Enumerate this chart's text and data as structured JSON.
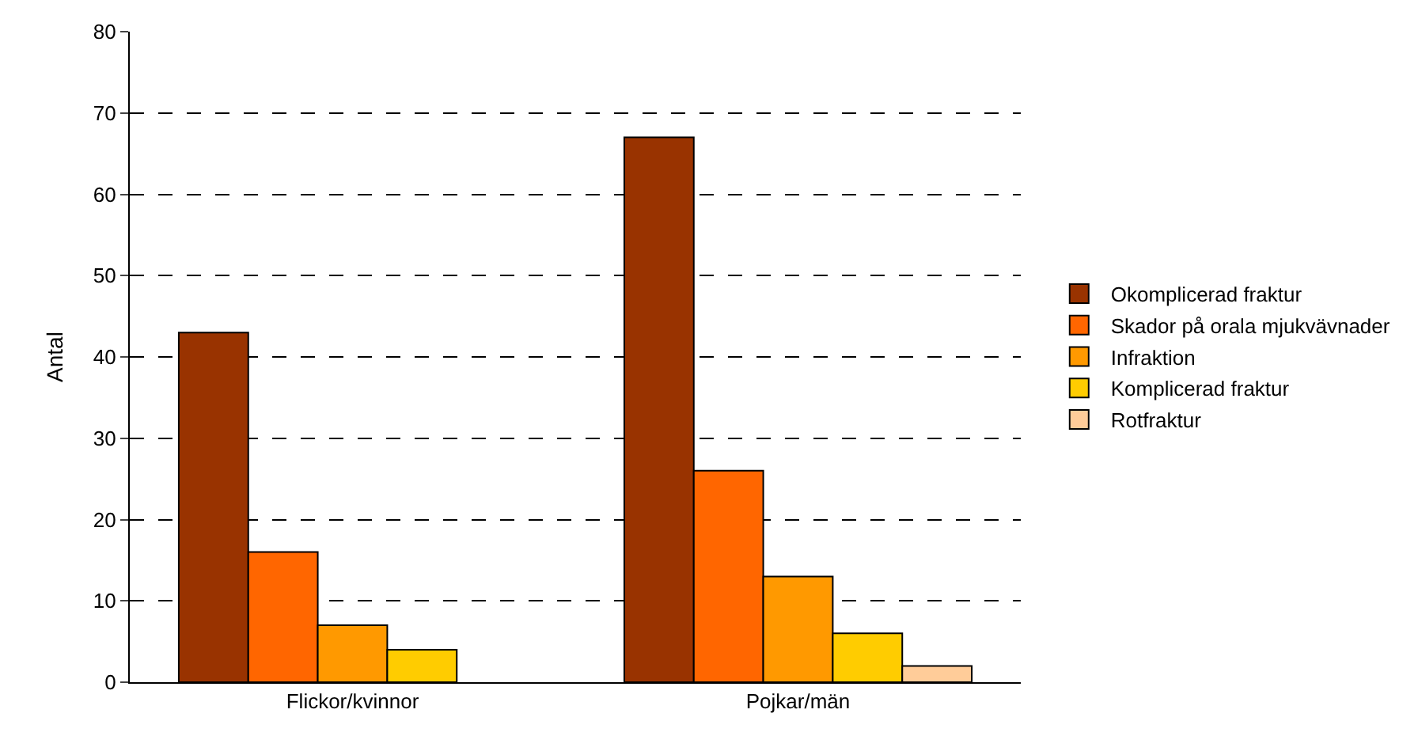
{
  "chart_data": {
    "type": "bar",
    "ylabel": "Antal",
    "categories": [
      "Flickor/kvinnor",
      "Pojkar/män"
    ],
    "series": [
      {
        "name": "Okomplicerad fraktur",
        "color": "#993300",
        "values": [
          43,
          67
        ]
      },
      {
        "name": "Skador på orala mjukvävnader",
        "color": "#ff6600",
        "values": [
          16,
          26
        ]
      },
      {
        "name": "Infraktion",
        "color": "#ff9900",
        "values": [
          7,
          13
        ]
      },
      {
        "name": "Komplicerad fraktur",
        "color": "#ffcc00",
        "values": [
          4,
          6
        ]
      },
      {
        "name": "Rotfraktur",
        "color": "#ffcc99",
        "values": [
          null,
          2
        ]
      }
    ],
    "ylim": [
      0,
      80
    ],
    "yticks": [
      0,
      10,
      20,
      30,
      40,
      50,
      60,
      70,
      80
    ],
    "grid": "y",
    "legend": "right"
  }
}
